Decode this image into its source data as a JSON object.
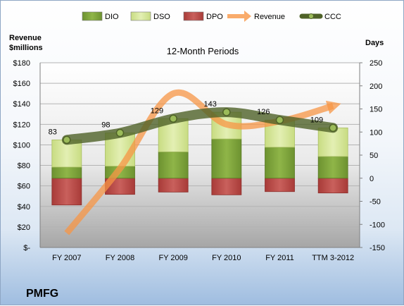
{
  "chart_data": {
    "type": "bar",
    "title": "12-Month Periods",
    "company": "PMFG",
    "categories": [
      "FY 2007",
      "FY 2008",
      "FY 2009",
      "FY 2010",
      "FY 2011",
      "TTM 3-2012"
    ],
    "left_axis": {
      "label": "Revenue\n$millions",
      "ticks": [
        "$-",
        "$20",
        "$40",
        "$60",
        "$80",
        "$100",
        "$120",
        "$140",
        "$160",
        "$180"
      ],
      "range": [
        0,
        180
      ]
    },
    "right_axis": {
      "label": "Days",
      "ticks": [
        "-150",
        "-100",
        "-50",
        "0",
        "50",
        "100",
        "150",
        "200",
        "250"
      ],
      "range": [
        -150,
        250
      ]
    },
    "legend": [
      "DIO",
      "DSO",
      "DPO",
      "Revenue",
      "CCC"
    ],
    "legend_position": "top",
    "grid": true,
    "series": [
      {
        "name": "DIO",
        "axis": "days",
        "values": [
          24,
          26,
          57,
          85,
          67,
          47
        ]
      },
      {
        "name": "DSO",
        "axis": "days",
        "values": [
          59,
          72,
          72,
          58,
          59,
          62
        ]
      },
      {
        "name": "DPO",
        "axis": "days",
        "values": [
          -58,
          -35,
          -30,
          -36,
          -29,
          -32
        ]
      },
      {
        "name": "Revenue",
        "axis": "revenue",
        "values": [
          14,
          77,
          150,
          120,
          123,
          138
        ]
      },
      {
        "name": "CCC",
        "axis": "days",
        "values": [
          83,
          98,
          129,
          143,
          126,
          109
        ]
      }
    ],
    "ccc_labels": [
      "83",
      "98",
      "129",
      "143",
      "126",
      "109"
    ],
    "colors": {
      "DIO": "#7ea33a",
      "DSO": "#d7e79b",
      "DPO": "#c0504d",
      "Revenue": "#f79646",
      "CCC": "#4f6228"
    }
  }
}
